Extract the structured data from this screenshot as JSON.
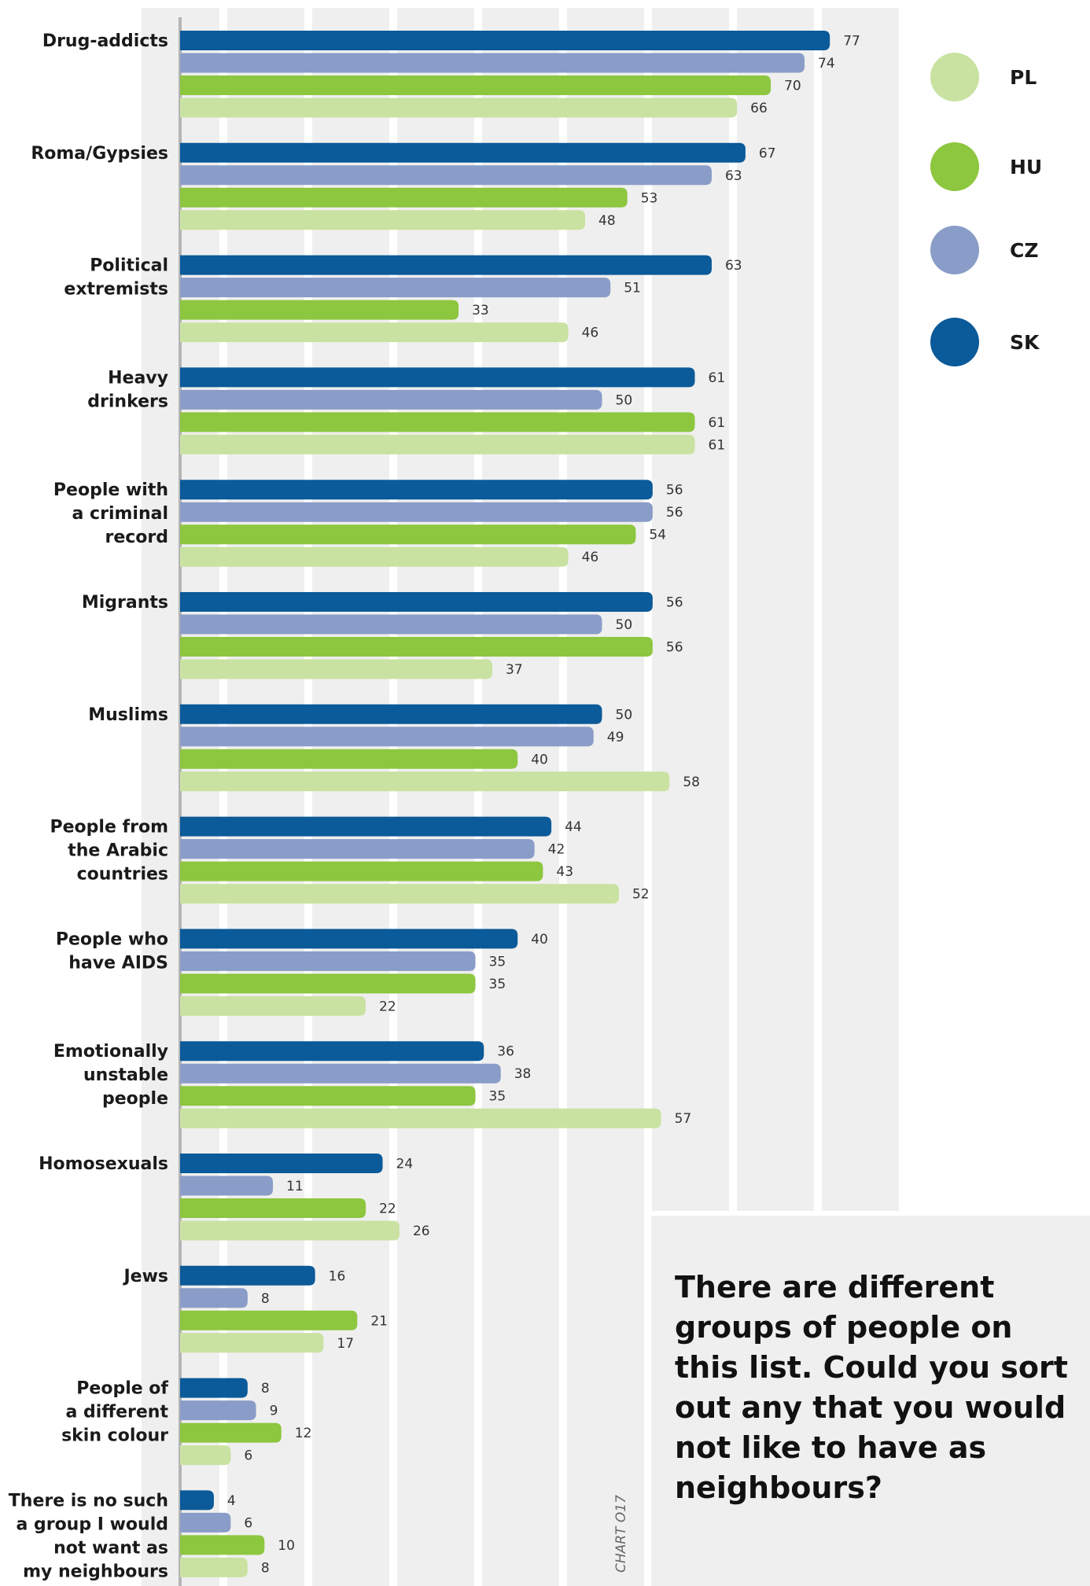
{
  "chart_data": {
    "type": "bar",
    "orientation": "horizontal",
    "categories": [
      [
        "Drug-addicts"
      ],
      [
        "Roma/Gypsies"
      ],
      [
        "Political",
        "extremists"
      ],
      [
        "Heavy",
        "drinkers"
      ],
      [
        "People with",
        "a criminal",
        "record"
      ],
      [
        "Migrants"
      ],
      [
        "Muslims"
      ],
      [
        "People from",
        "the Arabic",
        "countries"
      ],
      [
        "People who",
        "have AIDS"
      ],
      [
        "Emotionally",
        "unstable",
        "people"
      ],
      [
        "Homosexuals"
      ],
      [
        "Jews"
      ],
      [
        "People of",
        "a different",
        "skin colour"
      ],
      [
        "There is no such",
        "a group I would",
        "not want as",
        "my neighbours"
      ]
    ],
    "series": [
      {
        "name": "SK",
        "color": "#0b5a99",
        "values": [
          77,
          67,
          63,
          61,
          56,
          56,
          50,
          44,
          40,
          36,
          24,
          16,
          8,
          4
        ]
      },
      {
        "name": "CZ",
        "color": "#8a9dc8",
        "values": [
          74,
          63,
          51,
          50,
          56,
          50,
          49,
          42,
          35,
          38,
          11,
          8,
          9,
          6
        ]
      },
      {
        "name": "HU",
        "color": "#8dc63f",
        "values": [
          70,
          53,
          33,
          61,
          54,
          56,
          40,
          43,
          35,
          35,
          22,
          21,
          12,
          10
        ]
      },
      {
        "name": "PL",
        "color": "#c9e2a1",
        "values": [
          66,
          48,
          46,
          61,
          46,
          37,
          58,
          52,
          22,
          57,
          26,
          17,
          6,
          8
        ]
      }
    ],
    "legend_order": [
      "PL",
      "HU",
      "CZ",
      "SK"
    ],
    "legend_position": "top-right",
    "xlim": [
      0,
      84
    ],
    "grid": true,
    "grid_color": "#efefef"
  },
  "question": "There are different groups of people on this list. Could you sort out any that you would not like to have as neighbours?",
  "chart_id": "CHART O17"
}
